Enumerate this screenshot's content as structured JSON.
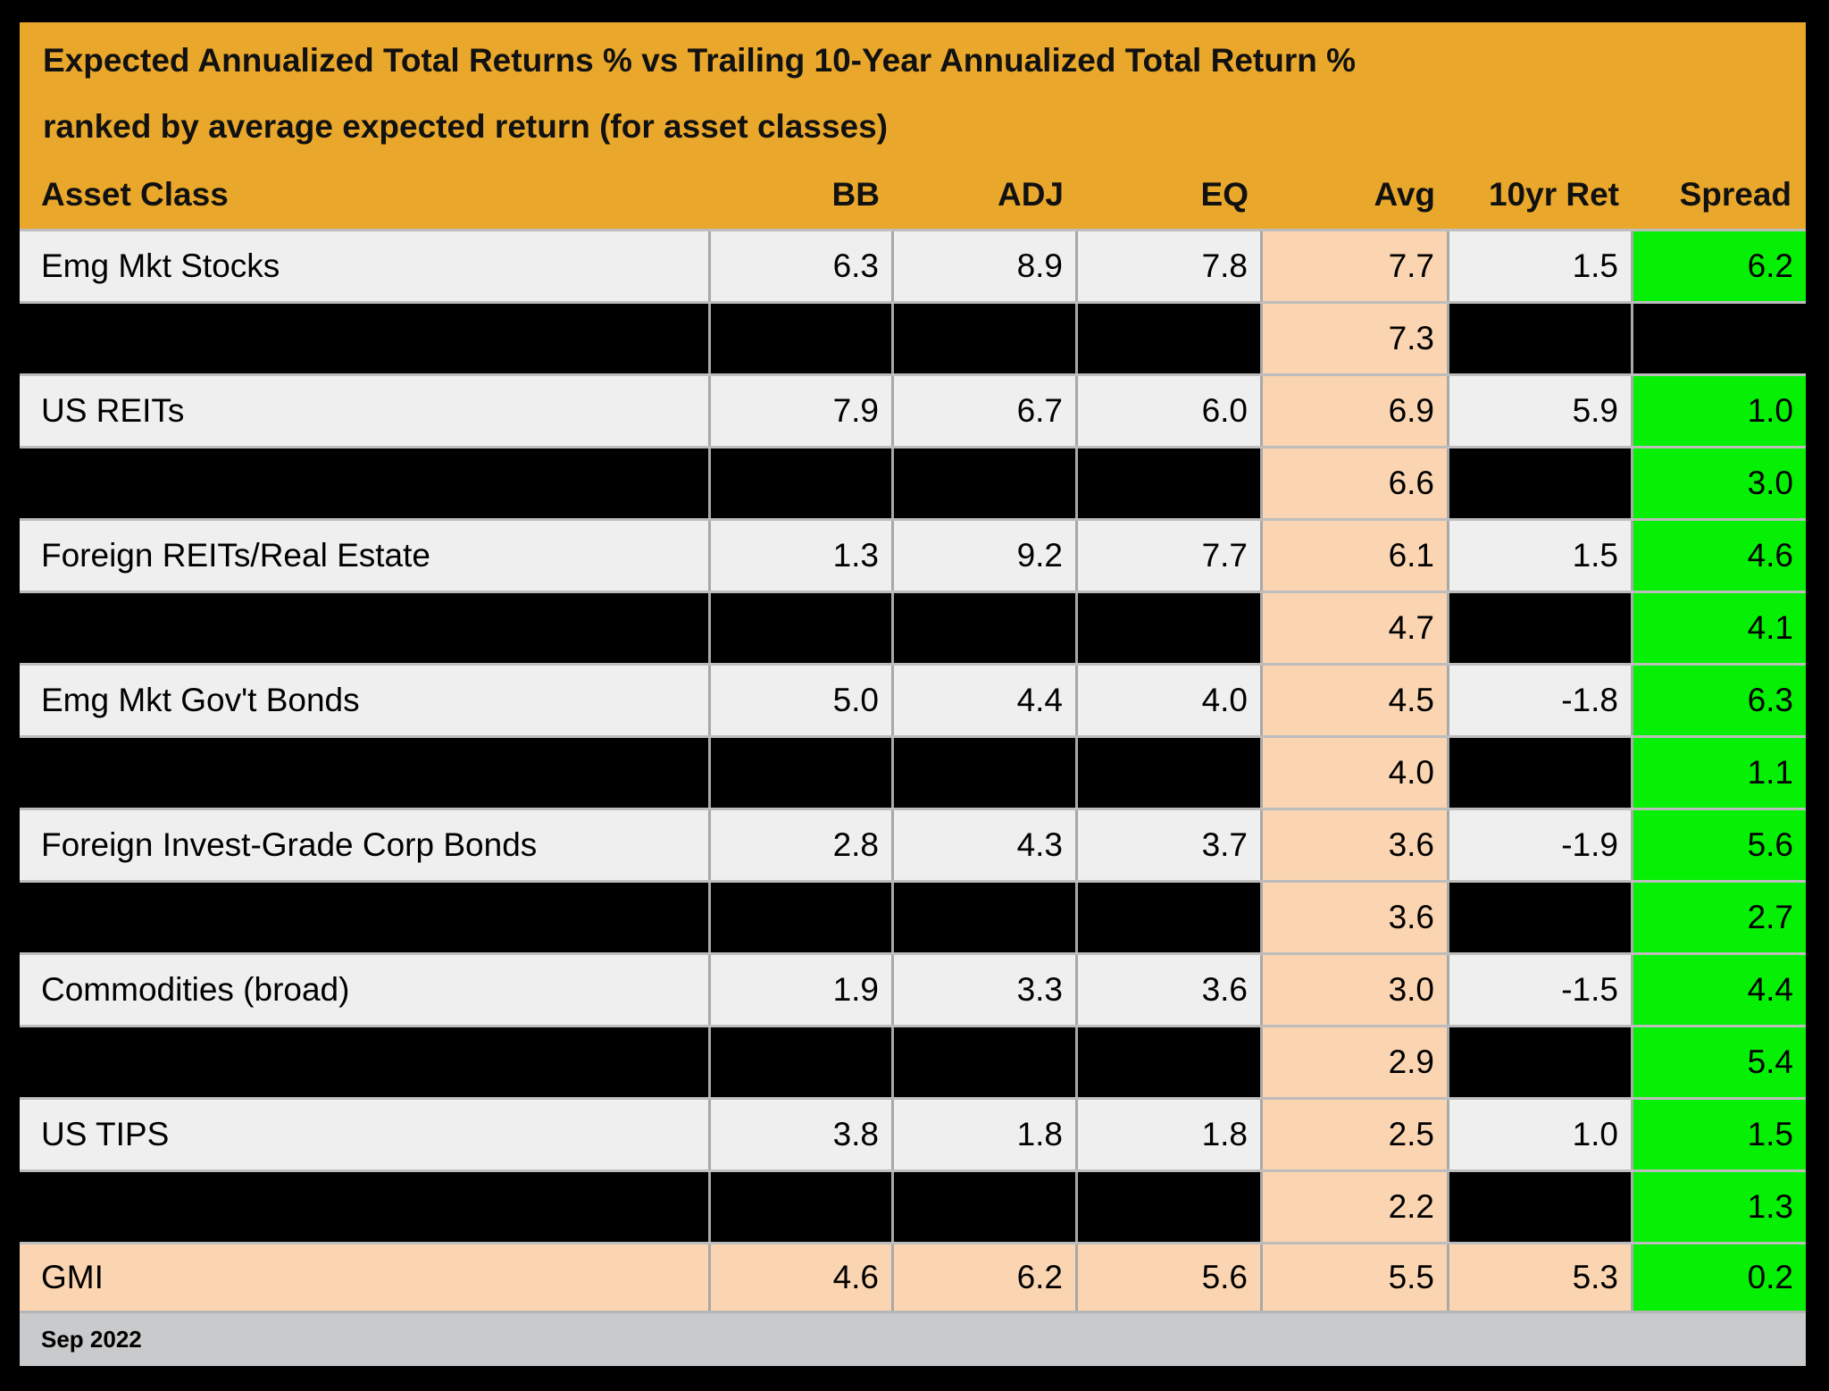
{
  "title": {
    "line1": "Expected Annualized Total Returns % vs Trailing 10-Year Annualized Total Return %",
    "line2": "ranked by average expected return (for asset classes)"
  },
  "footer": {
    "date": "Sep 2022"
  },
  "colors": {
    "header_gold": "#e9a82c",
    "row_gray": "#efefef",
    "avg_peach": "#fbd5b1",
    "spread_green": "#06f006",
    "redacted_black": "#000000",
    "footer_gray": "#c9cacb"
  },
  "chart_data": {
    "type": "table",
    "title": "Expected Annualized Total Returns % vs Trailing 10-Year Annualized Total Return % ranked by average expected return (for asset classes)",
    "columns": [
      "Asset Class",
      "BB",
      "ADJ",
      "EQ",
      "Avg",
      "10yr Ret",
      "Spread"
    ],
    "rows": [
      {
        "type": "data",
        "name": "Emg Mkt Stocks",
        "bb": "6.3",
        "adj": "8.9",
        "eq": "7.8",
        "avg": "7.7",
        "ret10": "1.5",
        "spread": "6.2"
      },
      {
        "type": "redacted",
        "name": null,
        "bb": null,
        "adj": null,
        "eq": null,
        "avg": "7.3",
        "ret10": null,
        "spread": null
      },
      {
        "type": "data",
        "name": "US REITs",
        "bb": "7.9",
        "adj": "6.7",
        "eq": "6.0",
        "avg": "6.9",
        "ret10": "5.9",
        "spread": "1.0"
      },
      {
        "type": "redacted",
        "name": null,
        "bb": null,
        "adj": null,
        "eq": null,
        "avg": "6.6",
        "ret10": null,
        "spread": "3.0"
      },
      {
        "type": "data",
        "name": "Foreign REITs/Real Estate",
        "bb": "1.3",
        "adj": "9.2",
        "eq": "7.7",
        "avg": "6.1",
        "ret10": "1.5",
        "spread": "4.6"
      },
      {
        "type": "redacted",
        "name": null,
        "bb": null,
        "adj": null,
        "eq": null,
        "avg": "4.7",
        "ret10": null,
        "spread": "4.1"
      },
      {
        "type": "data",
        "name": "Emg Mkt Gov't Bonds",
        "bb": "5.0",
        "adj": "4.4",
        "eq": "4.0",
        "avg": "4.5",
        "ret10": "-1.8",
        "spread": "6.3"
      },
      {
        "type": "redacted",
        "name": null,
        "bb": null,
        "adj": null,
        "eq": null,
        "avg": "4.0",
        "ret10": null,
        "spread": "1.1"
      },
      {
        "type": "data",
        "name": "Foreign Invest-Grade Corp Bonds",
        "bb": "2.8",
        "adj": "4.3",
        "eq": "3.7",
        "avg": "3.6",
        "ret10": "-1.9",
        "spread": "5.6"
      },
      {
        "type": "redacted",
        "name": null,
        "bb": null,
        "adj": null,
        "eq": null,
        "avg": "3.6",
        "ret10": null,
        "spread": "2.7"
      },
      {
        "type": "data",
        "name": "Commodities (broad)",
        "bb": "1.9",
        "adj": "3.3",
        "eq": "3.6",
        "avg": "3.0",
        "ret10": "-1.5",
        "spread": "4.4"
      },
      {
        "type": "redacted",
        "name": null,
        "bb": null,
        "adj": null,
        "eq": null,
        "avg": "2.9",
        "ret10": null,
        "spread": "5.4"
      },
      {
        "type": "data",
        "name": "US TIPS",
        "bb": "3.8",
        "adj": "1.8",
        "eq": "1.8",
        "avg": "2.5",
        "ret10": "1.0",
        "spread": "1.5"
      },
      {
        "type": "redacted",
        "name": null,
        "bb": null,
        "adj": null,
        "eq": null,
        "avg": "2.2",
        "ret10": null,
        "spread": "1.3"
      },
      {
        "type": "gmi",
        "name": "GMI",
        "bb": "4.6",
        "adj": "6.2",
        "eq": "5.6",
        "avg": "5.5",
        "ret10": "5.3",
        "spread": "0.2"
      }
    ]
  }
}
